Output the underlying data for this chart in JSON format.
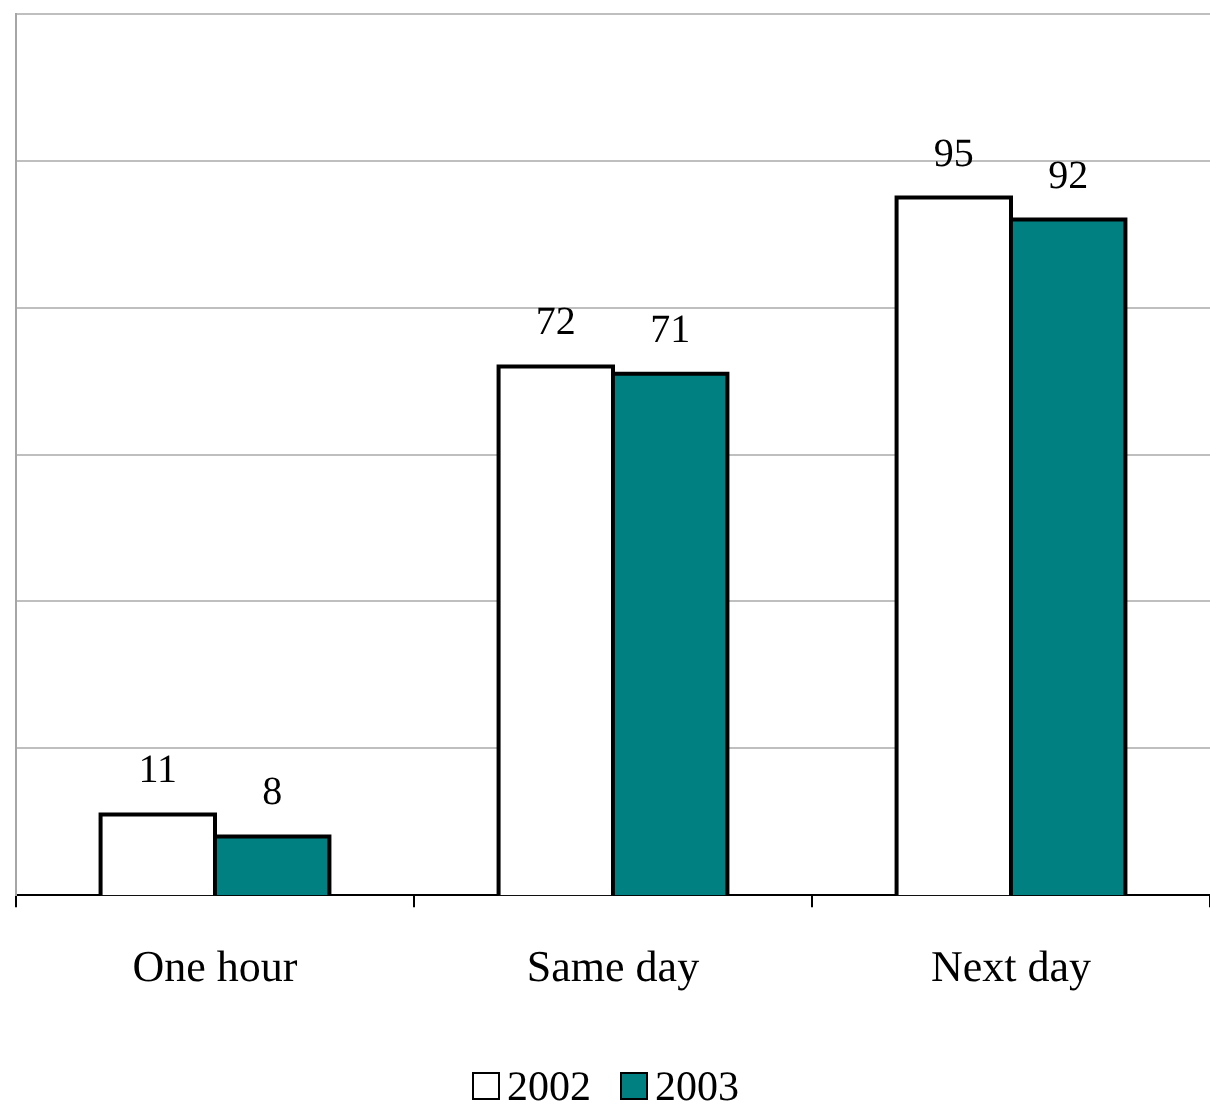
{
  "chart_data": {
    "type": "bar",
    "categories": [
      "One hour",
      "Same day",
      "Next day"
    ],
    "series": [
      {
        "name": "2002",
        "color": "#ffffff",
        "values": [
          11,
          72,
          95
        ]
      },
      {
        "name": "2003",
        "color": "#008080",
        "values": [
          8,
          71,
          92
        ]
      }
    ],
    "ylim": [
      0,
      120
    ],
    "yticks": [
      {
        "value": 20,
        "label": null
      },
      {
        "value": 40,
        "label": null
      },
      {
        "value": 60,
        "label": null
      },
      {
        "value": 80,
        "label": null
      },
      {
        "value": 100,
        "label": null
      },
      {
        "value": 120,
        "label": null
      }
    ],
    "grid": "y",
    "tick_labels": "x",
    "data_labels": true,
    "legend": "bottom"
  }
}
